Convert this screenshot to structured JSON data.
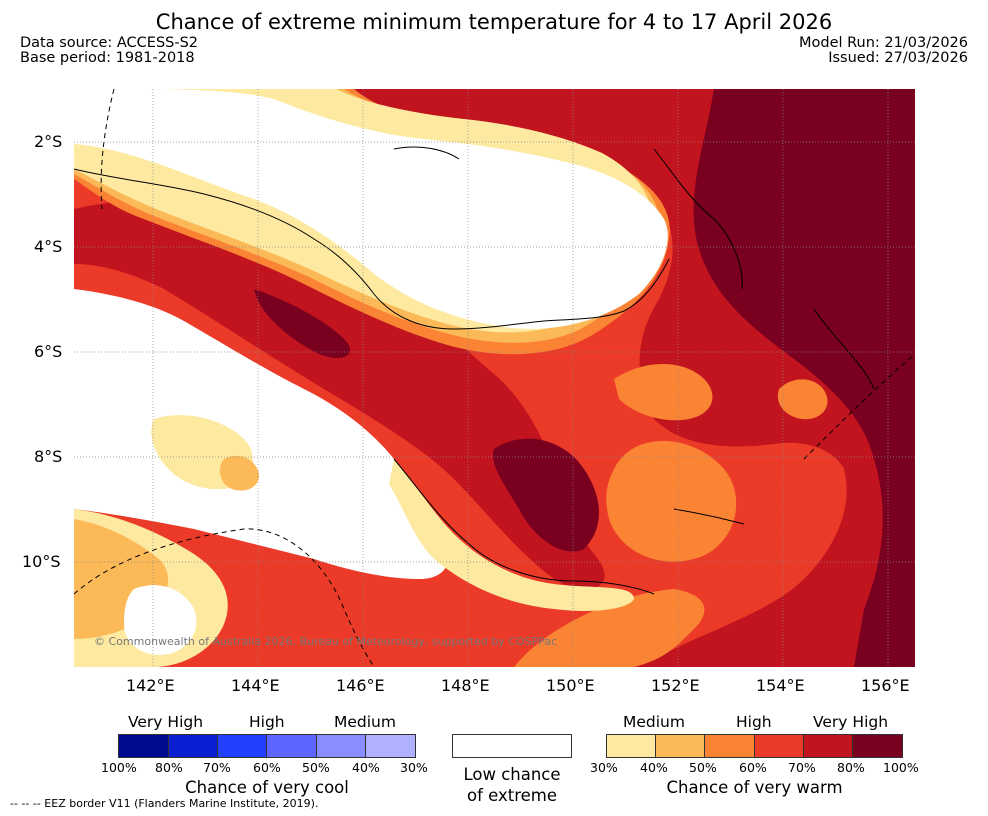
{
  "title": "Chance of extreme minimum temperature for 4 to 17 April 2026",
  "data_source": "Data source: ACCESS-S2",
  "base_period": "Base period: 1981-2018",
  "model_run": "Model Run: 21/03/2026",
  "issued": "Issued: 27/03/2026",
  "map": {
    "region": "Papua New Guinea",
    "lon_ticks": [
      "142°E",
      "144°E",
      "146°E",
      "148°E",
      "150°E",
      "152°E",
      "154°E",
      "156°E"
    ],
    "lat_ticks": [
      "2°S",
      "4°S",
      "6°S",
      "8°S",
      "10°S"
    ],
    "copyright": "© Commonwealth of Australia 2026, Bureau of Meteorology, supported by COSPPac",
    "colors": {
      "warm_30_40": "#fde9a0",
      "warm_40_50": "#fbb958",
      "warm_50_60": "#fa8334",
      "warm_60_70": "#ec3a28",
      "warm_70_80": "#c1141f",
      "warm_80_100": "#7a0020"
    }
  },
  "cool_scale": {
    "headers": [
      "Very High",
      "High",
      "Medium"
    ],
    "ticks": [
      "100%",
      "80%",
      "70%",
      "60%",
      "50%",
      "40%",
      "30%"
    ],
    "colors": [
      "#000a8f",
      "#0a1ed2",
      "#2340ff",
      "#5e66ff",
      "#8a8dff",
      "#afb0ff"
    ],
    "caption": "Chance of very cool"
  },
  "low_chance": {
    "caption_line1": "Low chance",
    "caption_line2": "of extreme"
  },
  "warm_scale": {
    "headers": [
      "Medium",
      "High",
      "Very High"
    ],
    "ticks": [
      "30%",
      "40%",
      "50%",
      "60%",
      "70%",
      "80%",
      "100%"
    ],
    "colors": [
      "#fde9a0",
      "#fbb958",
      "#fa8334",
      "#ec3a28",
      "#c1141f",
      "#7a0020"
    ],
    "caption": "Chance of very warm"
  },
  "footnote": "--  --  -- EEZ border V11 (Flanders Marine Institute, 2019)."
}
